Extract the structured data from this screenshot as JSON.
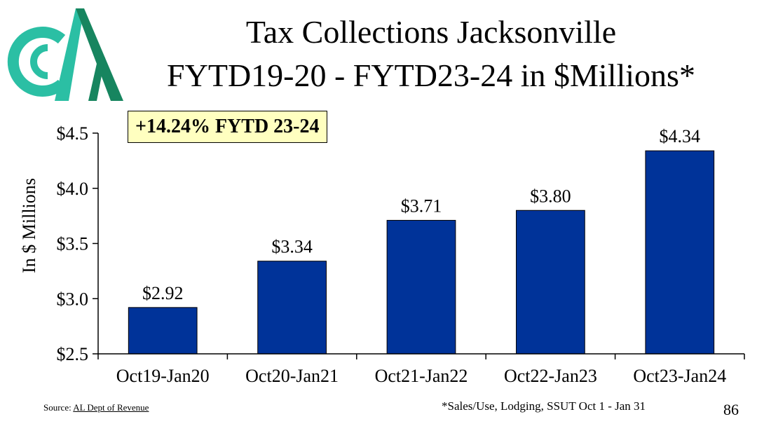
{
  "title_line1": "Tax Collections Jacksonville",
  "title_line2": "FYTD19-20 - FYTD23-24 in $Millions*",
  "highlight": "+14.24% FYTD 23-24",
  "source_label": "Source:",
  "source_link": "AL Dept of Revenue",
  "footnote": "*Sales/Use, Lodging, SSUT Oct 1 - Jan 31",
  "page_number": "86",
  "colors": {
    "bar": "#003399",
    "logo_teal": "#2bbfa4",
    "logo_green": "#17855f",
    "highlight_bg": "#ffffc0"
  },
  "chart_data": {
    "type": "bar",
    "categories": [
      "Oct19-Jan20",
      "Oct20-Jan21",
      "Oct21-Jan22",
      "Oct22-Jan23",
      "Oct23-Jan24"
    ],
    "values": [
      2.92,
      3.34,
      3.71,
      3.8,
      4.34
    ],
    "data_labels": [
      "$2.92",
      "$3.34",
      "$3.71",
      "$3.80",
      "$4.34"
    ],
    "ylabel": "In $ Millions",
    "ylim": [
      2.5,
      4.5
    ],
    "yticks": [
      2.5,
      3.0,
      3.5,
      4.0,
      4.5
    ],
    "ytick_labels": [
      "$2.5",
      "$3.0",
      "$3.5",
      "$4.0",
      "$4.5"
    ],
    "grid": false,
    "legend": "none"
  }
}
